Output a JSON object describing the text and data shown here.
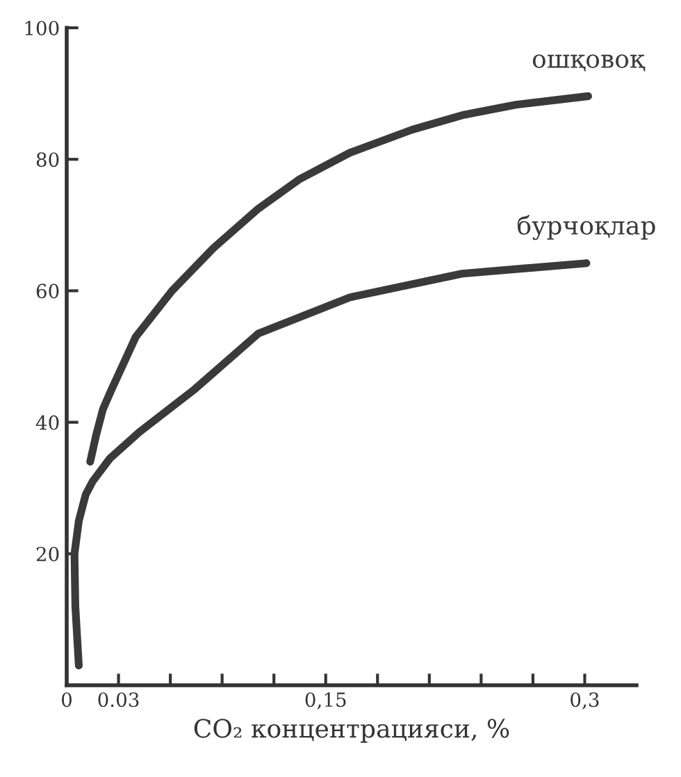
{
  "chart_data": {
    "type": "line",
    "xlabel": "CO₂ концентрацияси, %",
    "xlim": [
      0,
      0.33
    ],
    "ylim": [
      0,
      100
    ],
    "xticks": [
      {
        "value": 0,
        "label": "0"
      },
      {
        "value": 0.03,
        "label": "0.03"
      },
      {
        "value": 0.06,
        "label": null
      },
      {
        "value": 0.09,
        "label": null
      },
      {
        "value": 0.12,
        "label": null
      },
      {
        "value": 0.15,
        "label": "0,15"
      },
      {
        "value": 0.18,
        "label": null
      },
      {
        "value": 0.21,
        "label": null
      },
      {
        "value": 0.24,
        "label": null
      },
      {
        "value": 0.27,
        "label": null
      },
      {
        "value": 0.3,
        "label": "0,3"
      }
    ],
    "yticks": [
      {
        "value": 0,
        "label": null
      },
      20,
      40,
      60,
      80,
      100
    ],
    "grid": false,
    "legend": false,
    "marker": "none",
    "line_style": "solid",
    "series": [
      {
        "name": "ошқовоқ",
        "color": "#3a3a3a",
        "x": [
          0.0136,
          0.017,
          0.021,
          0.026,
          0.04,
          0.061,
          0.085,
          0.111,
          0.135,
          0.164,
          0.2,
          0.229,
          0.26,
          0.302
        ],
        "values": [
          34,
          38,
          42,
          45,
          53,
          60,
          66.5,
          72.5,
          77,
          81,
          84.5,
          86.7,
          88.3,
          89.6
        ]
      },
      {
        "name": "бурчоқлар",
        "color": "#3a3a3a",
        "x": [
          0.007,
          0.005,
          0.0045,
          0.007,
          0.011,
          0.015,
          0.025,
          0.042,
          0.074,
          0.111,
          0.164,
          0.229,
          0.301
        ],
        "values": [
          3,
          12,
          20,
          25,
          29,
          31,
          34.5,
          38.5,
          45,
          53.5,
          59,
          62.6,
          64.2
        ]
      }
    ]
  }
}
